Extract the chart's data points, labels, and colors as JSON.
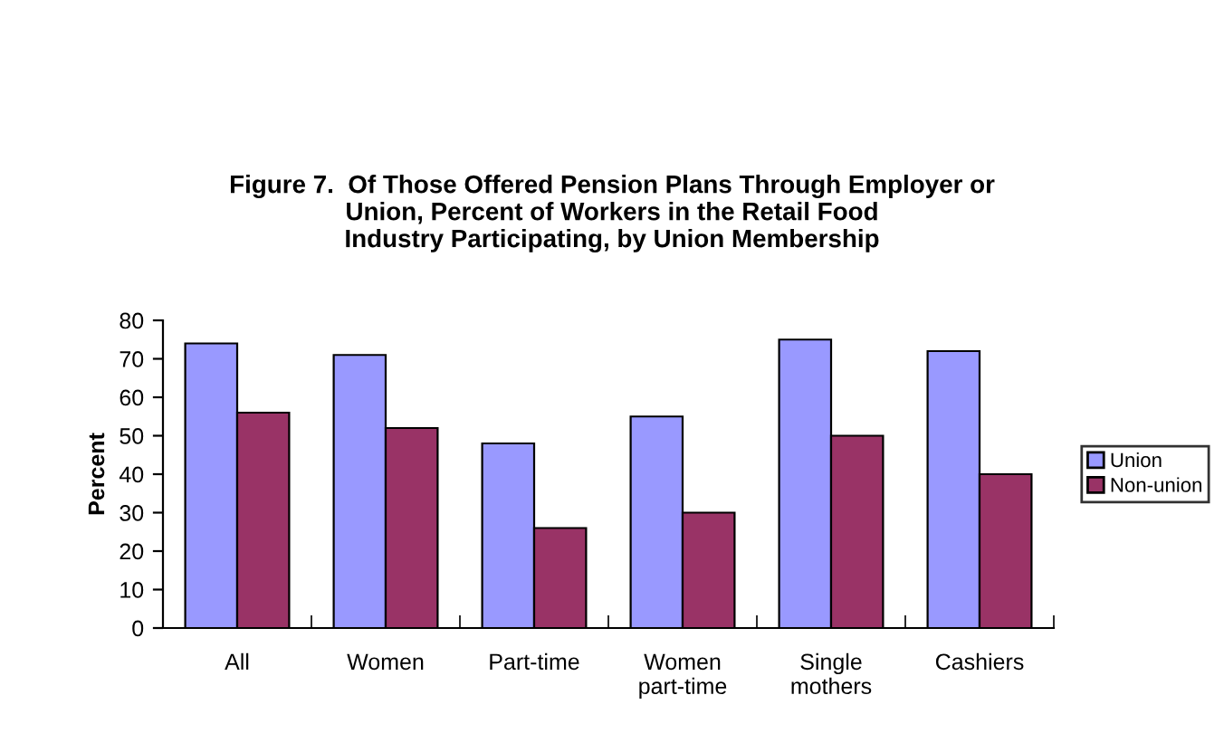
{
  "chart_data": {
    "type": "bar",
    "title": "Figure 7.  Of Those Offered Pension Plans Through Employer or\nUnion, Percent of Workers in the Retail Food\nIndustry Participating, by Union Membership",
    "ylabel": "Percent",
    "categories": [
      "All",
      "Women",
      "Part-time",
      "Women\npart-time",
      "Single\nmothers",
      "Cashiers"
    ],
    "series": [
      {
        "name": "Union",
        "color": "#9999ff",
        "values": [
          74,
          71,
          48,
          55,
          75,
          72
        ]
      },
      {
        "name": "Non-union",
        "color": "#993366",
        "values": [
          56,
          52,
          26,
          30,
          50,
          40
        ]
      }
    ],
    "ylim": [
      0,
      80
    ],
    "yticks": [
      0,
      10,
      20,
      30,
      40,
      50,
      60,
      70,
      80
    ],
    "grid": false,
    "legend": "right"
  }
}
